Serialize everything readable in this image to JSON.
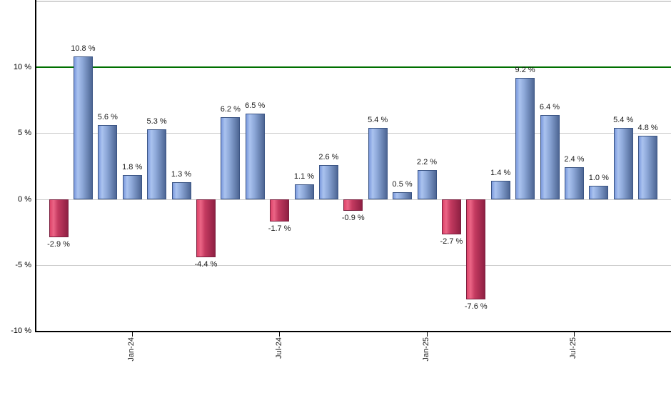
{
  "chart_data": {
    "type": "bar",
    "title": "",
    "xlabel": "",
    "ylabel": "",
    "values": [
      -2.9,
      10.8,
      5.6,
      1.8,
      5.3,
      1.3,
      -4.4,
      6.2,
      6.5,
      -1.7,
      1.1,
      2.6,
      -0.9,
      5.4,
      0.5,
      2.2,
      -2.7,
      -7.6,
      1.4,
      9.2,
      6.4,
      2.4,
      1.0,
      5.4,
      4.8
    ],
    "bar_labels": [
      "-2.9 %",
      "10.8 %",
      "5.6 %",
      "1.8 %",
      "5.3 %",
      "1.3 %",
      "-4.4 %",
      "6.2 %",
      "6.5 %",
      "-1.7 %",
      "1.1 %",
      "2.6 %",
      "-0.9 %",
      "5.4 %",
      "0.5 %",
      "2.2 %",
      "-2.7 %",
      "-7.6 %",
      "1.4 %",
      "9.2 %",
      "6.4 %",
      "2.4 %",
      "1.0 %",
      "5.4 %",
      "4.8 %"
    ],
    "x_ticks": [
      {
        "label": "Jan-24",
        "bar_index": 3
      },
      {
        "label": "Jul-24",
        "bar_index": 9
      },
      {
        "label": "Jan-25",
        "bar_index": 15
      },
      {
        "label": "Jul-25",
        "bar_index": 21
      }
    ],
    "y_ticks": [
      {
        "label": "10 %",
        "value": 10
      },
      {
        "label": "5 %",
        "value": 5
      },
      {
        "label": "0 %",
        "value": 0
      },
      {
        "label": "-5 %",
        "value": -5
      },
      {
        "label": "-10 %",
        "value": -10
      }
    ],
    "ylim": [
      -10,
      15
    ],
    "reference_line": {
      "value": 10,
      "color": "#007000"
    },
    "grid": "horizontal",
    "legend": "none",
    "colors": {
      "positive_bar_gradient": [
        "#7b99dd",
        "#aac3ef",
        "#8ea9d9",
        "#4d6694"
      ],
      "negative_bar_gradient": [
        "#dd4268",
        "#eb6586",
        "#c43a60",
        "#8e2043"
      ],
      "positive_bar_border": "#3a5484",
      "negative_bar_border": "#7c1f3f",
      "gridline": "#cccccc",
      "axis": "#000000",
      "plot_top_border": "#d3d3d3",
      "label_text": "#1a1a1a"
    }
  }
}
